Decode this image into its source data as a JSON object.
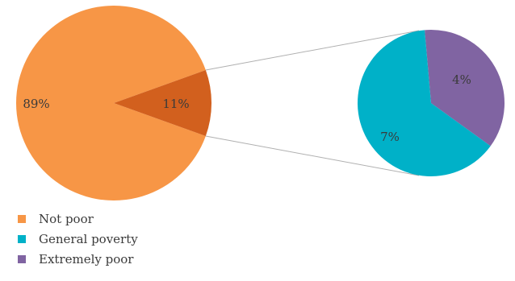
{
  "chart_data": {
    "type": "pie",
    "subtype": "pie-of-pie",
    "main_pie": {
      "slices": [
        {
          "key": "not_poor",
          "label": "89%",
          "value": 89,
          "color": "#F79646"
        },
        {
          "key": "poor",
          "label": "11%",
          "value": 11,
          "color": "#D2601E"
        }
      ]
    },
    "secondary_pie": {
      "slices": [
        {
          "key": "extremely_poor",
          "label": "4%",
          "value": 4,
          "color": "#8064A2"
        },
        {
          "key": "general_poverty",
          "label": "7%",
          "value": 7,
          "color": "#00B1C8"
        }
      ]
    },
    "legend": [
      {
        "key": "not_poor",
        "label": "Not poor",
        "color": "#F79646"
      },
      {
        "key": "general_poverty",
        "label": "General poverty",
        "color": "#00B1C8"
      },
      {
        "key": "extremely_poor",
        "label": "Extremely poor",
        "color": "#8064A2"
      }
    ],
    "legend_position": "bottom-left",
    "connector_color": "#b0b0b0"
  }
}
